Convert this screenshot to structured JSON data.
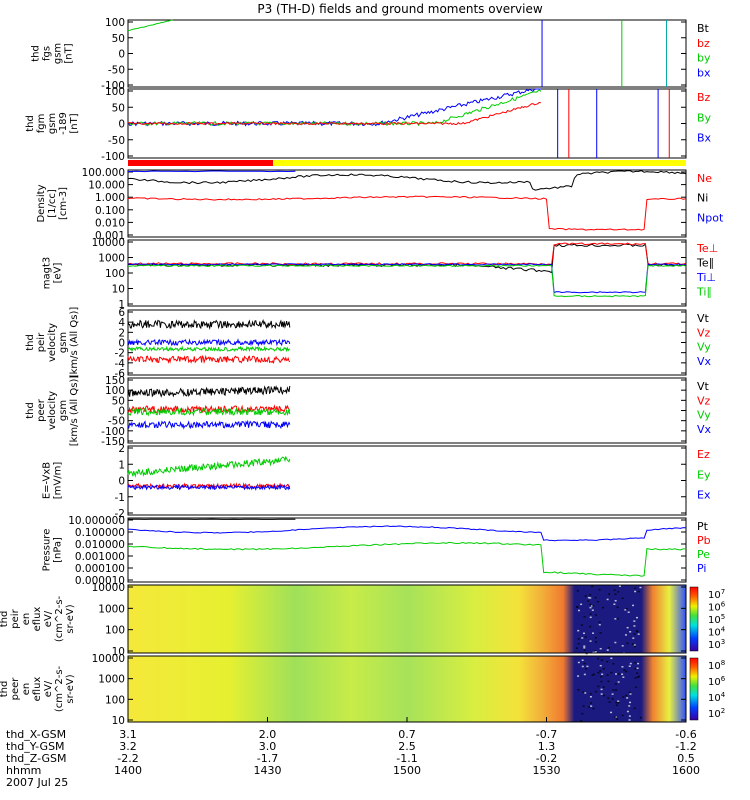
{
  "title": "P3 (TH-D) fields and ground moments overview",
  "colors": {
    "black": "#000000",
    "red": "#ff0000",
    "green": "#00cc00",
    "blue": "#0000ff",
    "yellow": "#ffff00"
  },
  "chart_data": {
    "type": "line",
    "x_axis": {
      "range_hhmm": [
        "1400",
        "1600"
      ],
      "tick_hhmm": [
        "1400",
        "1430",
        "1500",
        "1530",
        "1600"
      ],
      "ephemeris": [
        {
          "label": "thd_X-GSM",
          "values": [
            "3.1",
            "2.0",
            "0.7",
            "-0.7",
            "-0.6"
          ]
        },
        {
          "label": "thd_Y-GSM",
          "values": [
            "3.2",
            "3.0",
            "2.5",
            "1.3",
            "-1.2"
          ]
        },
        {
          "label": "thd_Z-GSM",
          "values": [
            "-2.2",
            "-1.7",
            "-1.1",
            "-0.2",
            "0.5"
          ]
        },
        {
          "label": "hhmm",
          "values": [
            "1400",
            "1430",
            "1500",
            "1530",
            "1600"
          ]
        }
      ],
      "date": "2007 Jul 25"
    },
    "panels": [
      {
        "id": "fgs",
        "ylabel": [
          "thd",
          "fgs",
          "gsm",
          "[nT]"
        ],
        "ylim": [
          -100,
          100
        ],
        "yticks": [
          "100",
          "50",
          "0",
          "-50",
          "-100"
        ],
        "legend": [
          {
            "name": "Bt",
            "color": "#000000"
          },
          {
            "name": "bz",
            "color": "#ff0000"
          },
          {
            "name": "by",
            "color": "#00cc00"
          },
          {
            "name": "bx",
            "color": "#0000ff"
          }
        ]
      },
      {
        "id": "fgm",
        "ylabel": [
          "thd",
          "fgm",
          "gsm",
          "-189",
          "[nT]"
        ],
        "ylim": [
          -130,
          130
        ],
        "yticks": [
          "100",
          "50",
          "0",
          "-50",
          "-100"
        ],
        "legend": [
          {
            "name": "Bz",
            "color": "#ff0000"
          },
          {
            "name": "By",
            "color": "#00cc00"
          },
          {
            "name": "Bx",
            "color": "#0000ff"
          }
        ]
      },
      {
        "id": "density",
        "ylabel": [
          "Density",
          "[1/cc]",
          "[cm-3]"
        ],
        "ylim_log": [
          0.0003,
          300
        ],
        "yticks": [
          "100.000",
          "10.000",
          "1.000",
          "0.100",
          "0.010",
          "0.001"
        ],
        "legend": [
          {
            "name": "Ne",
            "color": "#ff0000"
          },
          {
            "name": "Ni",
            "color": "#000000"
          },
          {
            "name": "Npot",
            "color": "#0000ff"
          }
        ]
      },
      {
        "id": "temperature",
        "ylabel": [
          "magt3",
          "[eV]"
        ],
        "ylim_log": [
          1,
          10000
        ],
        "yticks": [
          "10000",
          "1000",
          "100",
          "10",
          "1"
        ],
        "legend": [
          {
            "name": "Te⊥",
            "color": "#ff0000"
          },
          {
            "name": "Te∥",
            "color": "#000000"
          },
          {
            "name": "Ti⊥",
            "color": "#0000ff"
          },
          {
            "name": "Ti∥",
            "color": "#00cc00"
          }
        ]
      },
      {
        "id": "peir_velocity",
        "ylabel": [
          "thd",
          "peir",
          "velocity",
          "gsm",
          "[km/s (All Qs)]"
        ],
        "ylim": [
          -6,
          6
        ],
        "yticks": [
          "6",
          "4",
          "2",
          "0",
          "-2",
          "-4",
          "-6"
        ],
        "legend": [
          {
            "name": "Vt",
            "color": "#000000"
          },
          {
            "name": "Vz",
            "color": "#ff0000"
          },
          {
            "name": "Vy",
            "color": "#00cc00"
          },
          {
            "name": "Vx",
            "color": "#0000ff"
          }
        ]
      },
      {
        "id": "peer_velocity",
        "ylabel": [
          "thd",
          "peer",
          "velocity",
          "gsm",
          "[km/s (All Qs)]"
        ],
        "ylim": [
          -150,
          150
        ],
        "yticks": [
          "150",
          "100",
          "50",
          "0",
          "-50",
          "-100",
          "-150"
        ],
        "legend": [
          {
            "name": "Vt",
            "color": "#000000"
          },
          {
            "name": "Vz",
            "color": "#ff0000"
          },
          {
            "name": "Vy",
            "color": "#00cc00"
          },
          {
            "name": "Vx",
            "color": "#0000ff"
          }
        ]
      },
      {
        "id": "efield",
        "ylabel": [
          "E=-VxB",
          "[mV/m]"
        ],
        "ylim": [
          -2,
          2
        ],
        "yticks": [
          "2",
          "1",
          "0",
          "-1",
          "-2"
        ],
        "legend": [
          {
            "name": "Ez",
            "color": "#ff0000"
          },
          {
            "name": "Ey",
            "color": "#00cc00"
          },
          {
            "name": "Ex",
            "color": "#0000ff"
          }
        ]
      },
      {
        "id": "pressure",
        "ylabel": [
          "Pressure",
          "[nPa]"
        ],
        "ylim_log": [
          1e-06,
          100
        ],
        "yticks": [
          "10.000000",
          "0.100000",
          "0.010000",
          "0.001000",
          "0.000100",
          "0.000010"
        ],
        "legend": [
          {
            "name": "Pt",
            "color": "#000000"
          },
          {
            "name": "Pb",
            "color": "#ff0000"
          },
          {
            "name": "Pe",
            "color": "#00cc00"
          },
          {
            "name": "Pi",
            "color": "#0000ff"
          }
        ]
      },
      {
        "id": "peir_spectrogram",
        "type": "heatmap",
        "ylabel": [
          "thd",
          "peir",
          "en",
          "eflux",
          "eV/",
          "(cm^2-s-",
          "sr-eV)"
        ],
        "yticks": [
          "10000",
          "1000",
          "100",
          "10"
        ],
        "colorbar_ticks": [
          "10^7",
          "10^6",
          "10^5",
          "10^4",
          "10^3"
        ]
      },
      {
        "id": "peer_spectrogram",
        "type": "heatmap",
        "ylabel": [
          "thd",
          "peer",
          "en",
          "eflux",
          "eV/",
          "(cm^2-s-",
          "sr-eV)"
        ],
        "yticks": [
          "10000",
          "1000",
          "100",
          "10"
        ],
        "colorbar_ticks": [
          "10^8",
          "10^6",
          "10^4",
          "10^2"
        ]
      }
    ]
  }
}
